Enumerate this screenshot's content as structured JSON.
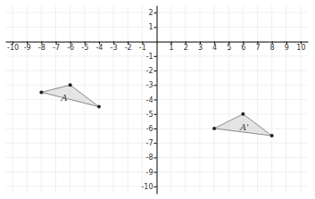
{
  "chart_data": {
    "type": "polygon",
    "xlim": [
      -10.5,
      10.5
    ],
    "ylim": [
      -10.5,
      2.5
    ],
    "xticks": [
      -10,
      -9,
      -8,
      -7,
      -6,
      -5,
      -4,
      -3,
      -2,
      -1,
      1,
      2,
      3,
      4,
      5,
      6,
      7,
      8,
      9,
      10
    ],
    "yticks": [
      -10,
      -9,
      -8,
      -7,
      -6,
      -5,
      -4,
      -3,
      -2,
      -1,
      1,
      2
    ],
    "grid": true,
    "series": [
      {
        "x": [
          -8,
          -6,
          -4
        ],
        "y": [
          -3.5,
          -3,
          -4.5
        ],
        "color": "#d3d3d3"
      },
      {
        "x": [
          4,
          6,
          8
        ],
        "y": [
          -6,
          -5,
          -6.5
        ],
        "color": "#d3d3d3"
      }
    ],
    "annotations": [
      {
        "text": "A",
        "x": -6.4,
        "y": -3.9
      },
      {
        "text": "A'",
        "x": 6.1,
        "y": -5.9
      }
    ]
  }
}
